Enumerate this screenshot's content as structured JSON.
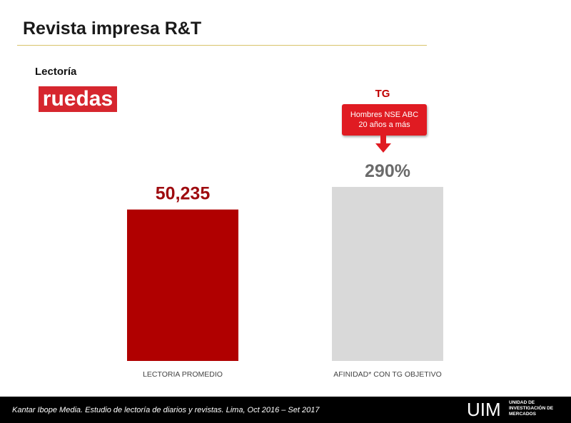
{
  "header": {
    "title": "Revista impresa R&T"
  },
  "section_label": "Lectoría",
  "logo": {
    "text": "ruedas",
    "color": "#d6262e"
  },
  "callout": {
    "tag": "TG",
    "line1": "Hombres NSE ABC",
    "line2": "20 años a más",
    "color": "#e01b22"
  },
  "chart_data": {
    "type": "bar",
    "categories": [
      "LECTORIA PROMEDIO",
      "AFINIDAD* CON TG OBJETIVO"
    ],
    "series": [
      {
        "values": [
          50235,
          290
        ],
        "data_labels": [
          "50,235",
          "290%"
        ],
        "colors": [
          "#b00000",
          "#d9d9d9"
        ],
        "label_colors": [
          "#9e0b0f",
          "#6b6b6b"
        ]
      }
    ],
    "bar_heights_relative": [
      0.87,
      1.0
    ],
    "grid": false,
    "legend": "none"
  },
  "footer": {
    "source": "Kantar Ibope Media. Estudio de lectoría de diarios y revistas. Lima, Oct 2016 – Set 2017",
    "brand": "UIM",
    "brand_sub_line1": "UNIDAD DE",
    "brand_sub_line2": "INVESTIGACIÓN DE",
    "brand_sub_line3": "MERCADOS"
  }
}
